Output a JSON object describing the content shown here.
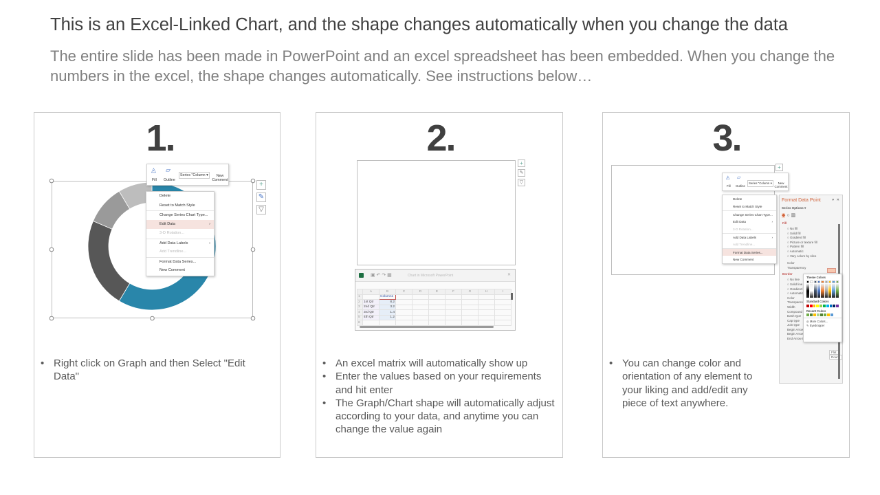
{
  "header": {
    "title": "This is an Excel-Linked Chart, and the shape changes automatically when you change the data",
    "subtitle": "The entire slide has been made in PowerPoint and an excel spreadsheet has been embedded. When you change the numbers in the excel, the shape changes automatically. See instructions below…"
  },
  "steps": [
    {
      "number": "1.",
      "bullets": [
        "Right click on Graph and then Select \"Edit Data\""
      ]
    },
    {
      "number": "2.",
      "bullets": [
        "An excel matrix will automatically  show up",
        "Enter the values based on your requirements and hit enter",
        "The Graph/Chart shape will automatically adjust according to your data, and anytime you can change the value again"
      ]
    },
    {
      "number": "3.",
      "bullets": [
        "You can change color and orientation of any element to your liking and add/edit any piece of text anywhere."
      ]
    }
  ],
  "mini_toolbar": {
    "fill": "Fill",
    "outline": "Outline",
    "series": "Series \"Column ▾",
    "new_comment": "New Comment"
  },
  "context_menu": [
    "Delete",
    "Reset to Match Style",
    "Change Series Chart Type...",
    "Edit Data",
    "3-D Rotation...",
    "Add Data Labels",
    "Add Trendline...",
    "Format Data Series...",
    "New Comment"
  ],
  "excel": {
    "window_title": "Chart in Microsoft PowerPoint",
    "columns": [
      "A",
      "B",
      "C",
      "D",
      "E",
      "F",
      "G",
      "H",
      "I"
    ],
    "header": "Column1",
    "rows": [
      {
        "label": "1st Qtr",
        "value": 8.2
      },
      {
        "label": "2nd Qtr",
        "value": 3.2
      },
      {
        "label": "3rd Qtr",
        "value": 1.4
      },
      {
        "label": "4th Qtr",
        "value": 1.2
      }
    ]
  },
  "format_pane": {
    "title": "Format Data Point",
    "series_options": "Series Options ▾",
    "fill": "Fill",
    "fill_options": [
      "No fill",
      "Solid fill",
      "Gradient fill",
      "Picture or texture fill",
      "Pattern fill",
      "Automatic",
      "Vary colors by slice"
    ],
    "color": "Color",
    "transparency": "Transparency",
    "border": "Border",
    "border_options": [
      "No line",
      "Solid line",
      "Gradient line",
      "Automatic"
    ],
    "border_props": [
      "Color",
      "Transparency",
      "Width",
      "Compound type",
      "Dash type",
      "Cap type",
      "Join type",
      "Begin Arrow type",
      "Begin Arrow size",
      "End Arrow type"
    ],
    "cap_value": "Flat",
    "join_value": "Round",
    "palette": {
      "theme": "Theme Colors",
      "standard": "Standard Colors",
      "recent": "Recent Colors",
      "more": "More Colors...",
      "eyedropper": "Eyedropper"
    }
  },
  "chart_data": {
    "type": "donut",
    "categories": [
      "1st Qtr",
      "2nd Qtr",
      "3rd Qtr",
      "4th Qtr"
    ],
    "values": [
      8.2,
      3.2,
      1.4,
      1.2
    ],
    "colors_gray": [
      "#2986aa",
      "#575757",
      "#9a9a9a",
      "#bdbdbd"
    ],
    "colors_green": [
      "#f4bd12",
      "#548235",
      "#8cbd62",
      "#b9dba0"
    ]
  }
}
